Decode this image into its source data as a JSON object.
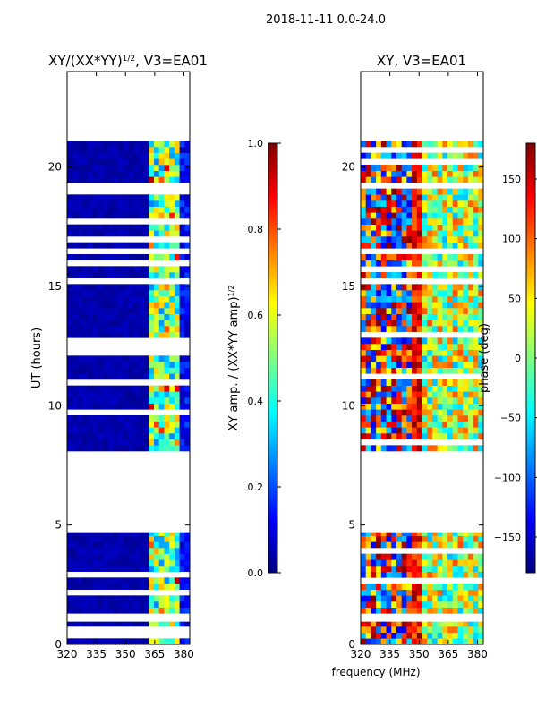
{
  "suptitle": "2018-11-11 0.0-24.0",
  "colors": {
    "jet": [
      "#00007f",
      "#0000ff",
      "#007fff",
      "#00ffff",
      "#7fff7f",
      "#ffff00",
      "#ff7f00",
      "#ff0000",
      "#7f0000"
    ],
    "frame": "#000000",
    "background": "#ffffff"
  },
  "chart_data": [
    {
      "type": "heatmap",
      "title_main": "XY/(XX*YY)",
      "title_sup": "1/2",
      "title_tail": ", V3=EA01",
      "xlabel": "frequency (MHz)",
      "ylabel": "UT (hours)",
      "x_range": [
        320,
        383
      ],
      "y_range": [
        0,
        24
      ],
      "x_ticks": [
        320,
        335,
        350,
        365,
        380
      ],
      "y_ticks": [
        0,
        5,
        10,
        15,
        20
      ],
      "data_intervals_hours": [
        [
          0.0,
          0.95
        ],
        [
          1.3,
          4.7
        ],
        [
          8.1,
          21.1
        ]
      ],
      "colorbar": {
        "label_main": "XY amp. / (XX*YY amp)",
        "label_sup": "1/2",
        "range": [
          0.0,
          1.0
        ],
        "ticks": [
          "0.0",
          "0.2",
          "0.4",
          "0.6",
          "0.8",
          "1.0"
        ]
      }
    },
    {
      "type": "heatmap",
      "title": "XY, V3=EA01",
      "xlabel": "frequency (MHz)",
      "x_range": [
        320,
        383
      ],
      "y_range": [
        0,
        24
      ],
      "x_ticks": [
        320,
        335,
        350,
        365,
        380
      ],
      "y_ticks": [
        0,
        5,
        10,
        15,
        20
      ],
      "data_intervals_hours": [
        [
          0.0,
          0.95
        ],
        [
          1.3,
          4.7
        ],
        [
          8.1,
          21.1
        ]
      ],
      "colorbar": {
        "label": "phase (deg)",
        "range": [
          -180,
          180
        ],
        "ticks": [
          "−150",
          "−100",
          "−50",
          "0",
          "50",
          "100",
          "150"
        ],
        "tick_values": [
          -150,
          -100,
          -50,
          0,
          50,
          100,
          150
        ]
      }
    }
  ]
}
